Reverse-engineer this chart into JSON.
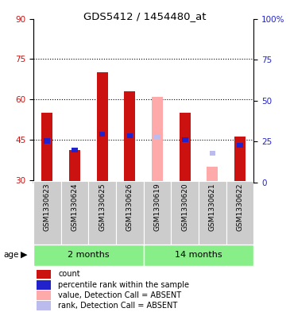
{
  "title": "GDS5412 / 1454480_at",
  "samples": [
    "GSM1330623",
    "GSM1330624",
    "GSM1330625",
    "GSM1330626",
    "GSM1330619",
    "GSM1330620",
    "GSM1330621",
    "GSM1330622"
  ],
  "red_values": [
    55,
    41,
    70,
    63,
    null,
    55,
    null,
    46
  ],
  "blue_values": [
    44.5,
    41,
    47,
    46.5,
    null,
    45,
    null,
    43
  ],
  "pink_values": [
    null,
    null,
    null,
    null,
    61,
    null,
    35,
    null
  ],
  "lightblue_values": [
    null,
    null,
    null,
    null,
    46,
    null,
    40,
    null
  ],
  "bar_bottom": 29,
  "ylim_left": [
    29,
    90
  ],
  "ylim_right": [
    0,
    100
  ],
  "yticks_left": [
    30,
    45,
    60,
    75,
    90
  ],
  "yticks_right": [
    0,
    25,
    50,
    75,
    100
  ],
  "ytick_labels_right": [
    "0",
    "25",
    "50",
    "75",
    "100%"
  ],
  "grid_lines": [
    45,
    60,
    75
  ],
  "red_color": "#cc1111",
  "blue_color": "#2222cc",
  "pink_color": "#ffaaaa",
  "lightblue_color": "#bbbbee",
  "group_color": "#88ee88",
  "bar_bg_color": "#cccccc",
  "plot_bg_color": "#ffffff",
  "age_label": "age",
  "group_defs": [
    {
      "label": "2 months",
      "start": 0,
      "end": 3
    },
    {
      "label": "14 months",
      "start": 4,
      "end": 7
    }
  ],
  "legend_items": [
    {
      "color": "#cc1111",
      "label": "count"
    },
    {
      "color": "#2222cc",
      "label": "percentile rank within the sample"
    },
    {
      "color": "#ffaaaa",
      "label": "value, Detection Call = ABSENT"
    },
    {
      "color": "#bbbbee",
      "label": "rank, Detection Call = ABSENT"
    }
  ]
}
